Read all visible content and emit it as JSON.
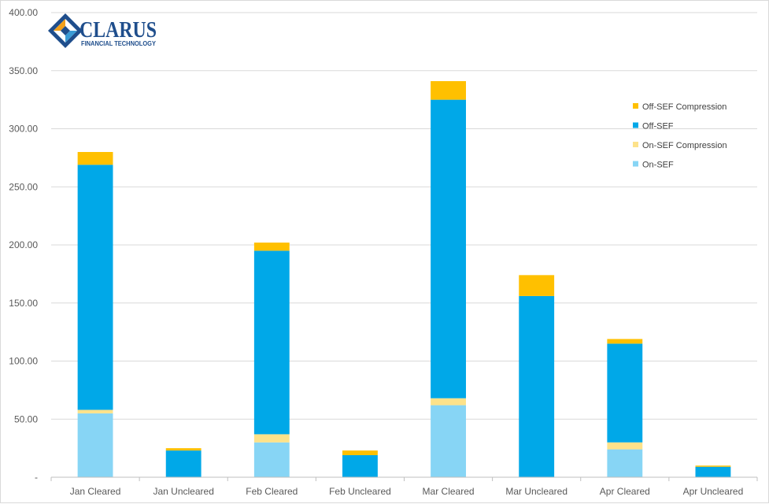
{
  "logo": {
    "name": "CLARUS",
    "tagline": "FINANCIAL TECHNOLOGY",
    "colors": {
      "text": "#1f4e8c",
      "diamond_dark": "#1f4e8c",
      "diamond_orange": "#f2a01b",
      "diamond_blue": "#3a9bd5"
    }
  },
  "chart_data": {
    "type": "bar",
    "stacked": true,
    "categories": [
      "Jan Cleared",
      "Jan Uncleared",
      "Feb Cleared",
      "Feb Uncleared",
      "Mar Cleared",
      "Mar Uncleared",
      "Apr Cleared",
      "Apr Uncleared"
    ],
    "series": [
      {
        "name": "On-SEF",
        "color": "#87d5f5",
        "values": [
          55,
          0,
          30,
          0,
          62,
          0,
          24,
          0
        ]
      },
      {
        "name": "On-SEF Compression",
        "color": "#fde28a",
        "values": [
          3,
          0,
          7,
          0,
          6,
          0,
          6,
          0
        ]
      },
      {
        "name": "Off-SEF",
        "color": "#00a8e8",
        "values": [
          211,
          23,
          158,
          19,
          257,
          156,
          85,
          9
        ]
      },
      {
        "name": "Off-SEF Compression",
        "color": "#ffc000",
        "values": [
          11,
          2,
          7,
          4,
          16,
          18,
          4,
          1
        ]
      }
    ],
    "legend_order": [
      "Off-SEF Compression",
      "Off-SEF",
      "On-SEF Compression",
      "On-SEF"
    ],
    "legend_position": "right",
    "ylim": [
      0,
      400
    ],
    "y_ticks": [
      "-",
      "50.00",
      "100.00",
      "150.00",
      "200.00",
      "250.00",
      "300.00",
      "350.00",
      "400.00"
    ],
    "grid": true,
    "title": "",
    "xlabel": "",
    "ylabel": ""
  }
}
